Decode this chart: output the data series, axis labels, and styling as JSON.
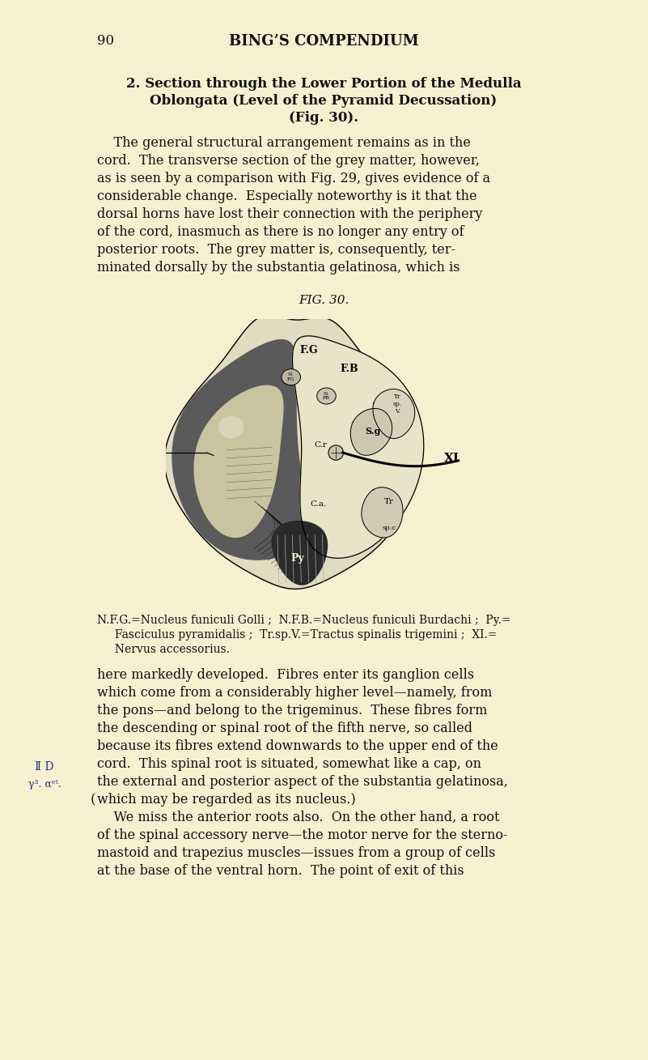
{
  "page_number": "90",
  "header": "BING’S COMPENDIUM",
  "bg_color": "#f5f0d0",
  "title_line1": "2. Section through the Lower Portion of the Medulla",
  "title_line2": "Oblongata (Level of the Pyramid Decussation)",
  "title_line3": "(Fig. 30).",
  "body_text": [
    "    The general structural arrangement remains as in the",
    "cord.  The transverse section of the grey matter, however,",
    "as is seen by a comparison with Fig. 29, gives evidence of a",
    "considerable change.  Especially noteworthy is it that the",
    "dorsal horns have lost their connection with the periphery",
    "of the cord, inasmuch as there is no longer any entry of",
    "posterior roots.  The grey matter is, consequently, ter-",
    "minated dorsally by the substantia gelatinosa, which is"
  ],
  "fig_caption": "FIG. 30.",
  "legend_line1": "N.F.G.=Nucleus funiculi Golli ;  N.F.B.=Nucleus funiculi Burdachi ;  Py.=",
  "legend_line2": "     Fasciculus pyramidalis ;  Tr.sp.V.=Tractus spinalis trigemini ;  XI.=",
  "legend_line3": "     Nervus accessorius.",
  "body_text2": [
    "here markedly developed.  Fibres enter its ganglion cells",
    "which come from a considerably higher level—namely, from",
    "the pons—and belong to the trigeminus.  These fibres form",
    "the descending or spinal root of the fifth nerve, so called",
    "because its fibres extend downwards to the upper end of the",
    "cord.  This spinal root is situated, somewhat like a cap, on",
    "the external and posterior aspect of the substantia gelatinosa,",
    "which may be regarded as its nucleus.)",
    "    We miss the anterior roots also.  On the other hand, a root",
    "of the spinal accessory nerve—the motor nerve for the sterno-",
    "mastoid and trapezius muscles—issues from a group of cells",
    "at the base of the ventral horn.  The point of exit of this"
  ]
}
